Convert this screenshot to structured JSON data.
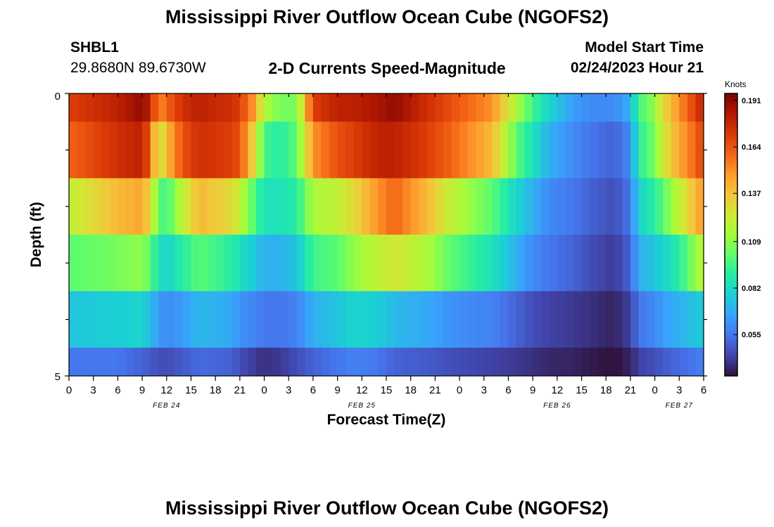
{
  "page_title": "Mississippi River Outflow Ocean Cube (NGOFS2)",
  "repeat_title": "Mississippi River Outflow Ocean Cube (NGOFS2)",
  "station": {
    "name": "SHBL1",
    "coords": "29.8680N  89.6730W"
  },
  "subtitle": "2-D Currents Speed-Magnitude",
  "model_start": {
    "label": "Model Start Time",
    "value": "02/24/2023 Hour 21"
  },
  "chart_data": {
    "type": "heatmap",
    "xlabel": "Forecast Time(Z)",
    "ylabel": "Depth (ft)",
    "ylim": [
      0,
      5
    ],
    "y_ticks": [
      "0",
      "5"
    ],
    "x_range_hours": [
      0,
      78
    ],
    "x_tick_labels": [
      "0",
      "3",
      "6",
      "9",
      "12",
      "15",
      "18",
      "21",
      "0",
      "3",
      "6",
      "9",
      "12",
      "15",
      "18",
      "21",
      "0",
      "3",
      "6",
      "9",
      "12",
      "15",
      "18",
      "21",
      "0",
      "3",
      "6"
    ],
    "date_labels": [
      {
        "text": "FEB 24",
        "hour": 12
      },
      {
        "text": "FEB 25",
        "hour": 36
      },
      {
        "text": "FEB 26",
        "hour": 60
      },
      {
        "text": "FEB 27",
        "hour": 75
      }
    ],
    "colorbar": {
      "label": "Knots",
      "min": 0.031,
      "max": 0.195,
      "ticks": [
        "0.191",
        "0.164",
        "0.137",
        "0.109",
        "0.082",
        "0.055"
      ],
      "colormap": [
        "#30123b",
        "#4145ab",
        "#4675ed",
        "#39a2fc",
        "#1bcfd4",
        "#24eca6",
        "#61fc6c",
        "#a4fc3b",
        "#d1e834",
        "#f3c63a",
        "#fe9b2d",
        "#f36315",
        "#d93806",
        "#b11901",
        "#7a0403"
      ]
    },
    "times": [
      0,
      6,
      9,
      10,
      11,
      12,
      14,
      16,
      20,
      21,
      23,
      24,
      26,
      28,
      30,
      33,
      35,
      38,
      40,
      44,
      47,
      52,
      55,
      57,
      59,
      62,
      64,
      67,
      69,
      70,
      72,
      73,
      75,
      77,
      78
    ],
    "depth_layers": [
      {
        "depth_range": [
          0,
          0.5
        ],
        "speeds": [
          0.17,
          0.18,
          0.19,
          0.18,
          0.15,
          0.16,
          0.175,
          0.18,
          0.175,
          0.17,
          0.145,
          0.115,
          0.105,
          0.105,
          0.17,
          0.18,
          0.18,
          0.185,
          0.19,
          0.175,
          0.165,
          0.15,
          0.115,
          0.095,
          0.08,
          0.065,
          0.06,
          0.06,
          0.07,
          0.095,
          0.11,
          0.13,
          0.15,
          0.17,
          0.18
        ]
      },
      {
        "depth_range": [
          0.5,
          1.5
        ],
        "speeds": [
          0.16,
          0.175,
          0.18,
          0.16,
          0.12,
          0.14,
          0.165,
          0.175,
          0.17,
          0.165,
          0.125,
          0.095,
          0.09,
          0.1,
          0.15,
          0.165,
          0.17,
          0.18,
          0.18,
          0.17,
          0.16,
          0.14,
          0.1,
          0.085,
          0.07,
          0.06,
          0.055,
          0.05,
          0.06,
          0.09,
          0.105,
          0.125,
          0.145,
          0.16,
          0.17
        ]
      },
      {
        "depth_range": [
          1.5,
          2.5
        ],
        "speeds": [
          0.12,
          0.14,
          0.145,
          0.13,
          0.1,
          0.095,
          0.12,
          0.14,
          0.13,
          0.12,
          0.095,
          0.085,
          0.085,
          0.09,
          0.115,
          0.12,
          0.13,
          0.15,
          0.16,
          0.14,
          0.12,
          0.1,
          0.08,
          0.07,
          0.06,
          0.055,
          0.05,
          0.045,
          0.055,
          0.08,
          0.09,
          0.1,
          0.12,
          0.14,
          0.15
        ]
      },
      {
        "depth_range": [
          2.5,
          3.5
        ],
        "speeds": [
          0.1,
          0.105,
          0.11,
          0.1,
          0.085,
          0.08,
          0.09,
          0.1,
          0.09,
          0.085,
          0.075,
          0.07,
          0.07,
          0.075,
          0.095,
          0.1,
          0.11,
          0.12,
          0.125,
          0.115,
          0.1,
          0.085,
          0.07,
          0.06,
          0.055,
          0.05,
          0.045,
          0.04,
          0.05,
          0.07,
          0.075,
          0.08,
          0.09,
          0.11,
          0.12
        ]
      },
      {
        "depth_range": [
          3.5,
          4.5
        ],
        "speeds": [
          0.075,
          0.078,
          0.08,
          0.072,
          0.065,
          0.06,
          0.065,
          0.072,
          0.068,
          0.062,
          0.058,
          0.055,
          0.055,
          0.058,
          0.07,
          0.075,
          0.08,
          0.078,
          0.072,
          0.068,
          0.062,
          0.058,
          0.05,
          0.045,
          0.042,
          0.04,
          0.038,
          0.035,
          0.042,
          0.055,
          0.06,
          0.065,
          0.07,
          0.075,
          0.078
        ]
      },
      {
        "depth_range": [
          4.5,
          5.0
        ],
        "speeds": [
          0.055,
          0.055,
          0.05,
          0.048,
          0.045,
          0.045,
          0.048,
          0.052,
          0.05,
          0.045,
          0.04,
          0.038,
          0.04,
          0.045,
          0.05,
          0.055,
          0.058,
          0.055,
          0.05,
          0.048,
          0.045,
          0.042,
          0.04,
          0.038,
          0.036,
          0.035,
          0.033,
          0.031,
          0.035,
          0.042,
          0.045,
          0.048,
          0.052,
          0.055,
          0.058
        ]
      }
    ]
  }
}
